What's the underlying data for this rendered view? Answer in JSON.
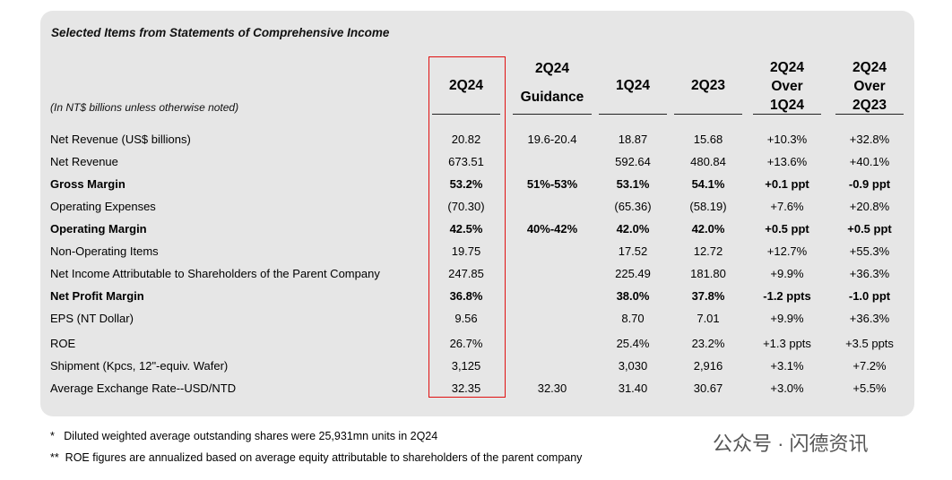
{
  "title": "Selected Items from Statements of Comprehensive Income",
  "note": "(In NT$ billions unless otherwise noted)",
  "columns": [
    [
      "2Q24"
    ],
    [
      "2Q24",
      "Guidance"
    ],
    [
      "1Q24"
    ],
    [
      "2Q23"
    ],
    [
      "2Q24",
      "Over",
      "1Q24"
    ],
    [
      "2Q24",
      "Over",
      "2Q23"
    ]
  ],
  "rows": [
    {
      "label": "Net Revenue (US$ billions)",
      "cells": [
        "20.82",
        "19.6-20.4",
        "18.87",
        "15.68",
        "+10.3%",
        "+32.8%"
      ]
    },
    {
      "label": "Net Revenue",
      "cells": [
        "673.51",
        null,
        "592.64",
        "480.84",
        "+13.6%",
        "+40.1%"
      ]
    },
    {
      "label": "Gross Margin",
      "bold": true,
      "cells": [
        "53.2%",
        "51%-53%",
        "53.1%",
        "54.1%",
        "+0.1 ppt",
        "-0.9 ppt"
      ]
    },
    {
      "label": "Operating Expenses",
      "cells": [
        "(70.30)",
        null,
        "(65.36)",
        "(58.19)",
        "+7.6%",
        "+20.8%"
      ]
    },
    {
      "label": "Operating Margin",
      "bold": true,
      "cells": [
        "42.5%",
        "40%-42%",
        "42.0%",
        "42.0%",
        "+0.5 ppt",
        "+0.5 ppt"
      ]
    },
    {
      "label": "Non-Operating Items",
      "cells": [
        "19.75",
        null,
        "17.52",
        "12.72",
        "+12.7%",
        "+55.3%"
      ]
    },
    {
      "label": "Net Income Attributable to Shareholders of the Parent Company",
      "cells": [
        "247.85",
        null,
        "225.49",
        "181.80",
        "+9.9%",
        "+36.3%"
      ]
    },
    {
      "label": "Net Profit Margin",
      "bold": true,
      "cells": [
        "36.8%",
        null,
        "38.0%",
        "37.8%",
        "-1.2 ppts",
        "-1.0 ppt"
      ]
    },
    {
      "label": "EPS (NT Dollar)",
      "cells": [
        "9.56",
        null,
        "8.70",
        "7.01",
        "+9.9%",
        "+36.3%"
      ]
    },
    {
      "label": "ROE",
      "cells": [
        "26.7%",
        null,
        "25.4%",
        "23.2%",
        "+1.3 ppts",
        "+3.5 ppts"
      ]
    },
    {
      "label": "Shipment (Kpcs, 12\"-equiv. Wafer)",
      "cells": [
        "3,125",
        null,
        "3,030",
        "2,916",
        "+3.1%",
        "+7.2%"
      ]
    },
    {
      "label": "Average Exchange Rate--USD/NTD",
      "cells": [
        "32.35",
        "32.30",
        "31.40",
        "30.67",
        "+3.0%",
        "+5.5%"
      ]
    }
  ],
  "footnotes": [
    "*   Diluted weighted average outstanding shares were 25,931mn units in 2Q24",
    "**  ROE figures are annualized based on average equity attributable to shareholders of the parent company"
  ],
  "watermark": "公众号 · 闪德资讯"
}
